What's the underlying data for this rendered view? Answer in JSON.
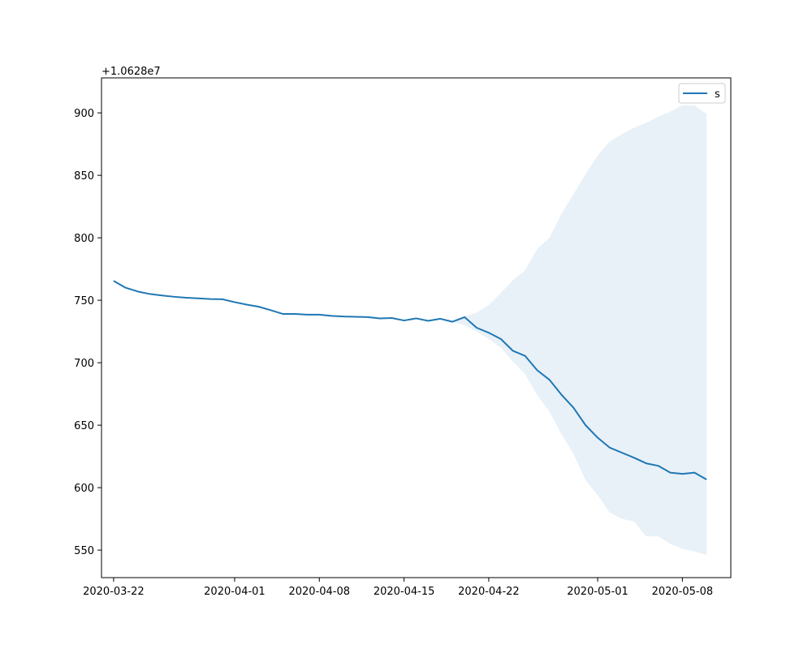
{
  "chart_data": {
    "type": "line",
    "title": "",
    "xlabel": "",
    "ylabel": "",
    "y_offset_label": "+1.0628e7",
    "y_offset": 10628000,
    "x_is_date": true,
    "xlim": [
      "2020-03-21",
      "2020-05-12"
    ],
    "ylim": [
      528,
      928
    ],
    "x_ticks": [
      "2020-03-22",
      "2020-04-01",
      "2020-04-08",
      "2020-04-15",
      "2020-04-22",
      "2020-05-01",
      "2020-05-08"
    ],
    "y_ticks": [
      550,
      600,
      650,
      700,
      750,
      800,
      850,
      900
    ],
    "grid": false,
    "legend": {
      "position": "top-right",
      "entries": [
        "s"
      ]
    },
    "colors": {
      "line": "#1f77b4",
      "band": "#1f77b4",
      "band_opacity": 0.1
    },
    "series": [
      {
        "name": "s",
        "x": [
          "2020-03-22",
          "2020-03-23",
          "2020-03-24",
          "2020-03-25",
          "2020-03-26",
          "2020-03-27",
          "2020-03-28",
          "2020-03-29",
          "2020-03-30",
          "2020-03-31",
          "2020-04-01",
          "2020-04-02",
          "2020-04-03",
          "2020-04-04",
          "2020-04-05",
          "2020-04-06",
          "2020-04-07",
          "2020-04-08",
          "2020-04-09",
          "2020-04-10",
          "2020-04-11",
          "2020-04-12",
          "2020-04-13",
          "2020-04-14",
          "2020-04-15",
          "2020-04-16",
          "2020-04-17",
          "2020-04-18",
          "2020-04-19",
          "2020-04-20",
          "2020-04-21",
          "2020-04-22",
          "2020-04-23",
          "2020-04-24",
          "2020-04-25",
          "2020-04-26",
          "2020-04-27",
          "2020-04-28",
          "2020-04-29",
          "2020-04-30",
          "2020-05-01",
          "2020-05-02",
          "2020-05-03",
          "2020-05-04",
          "2020-05-05",
          "2020-05-06",
          "2020-05-07",
          "2020-05-08",
          "2020-05-09",
          "2020-05-10"
        ],
        "values": [
          765.5,
          760,
          757,
          755,
          753.8,
          752.8,
          752,
          751.5,
          751,
          750.8,
          748.5,
          746.5,
          744.8,
          742,
          739,
          739,
          738.5,
          738.5,
          737.5,
          737,
          736.8,
          736.5,
          735.5,
          735.8,
          733.8,
          735.5,
          733.5,
          735.2,
          732.8,
          736.5,
          728,
          724,
          719,
          709.5,
          705.5,
          694,
          686.5,
          674.5,
          664,
          650,
          640,
          632,
          628,
          624,
          619.5,
          617.5,
          612,
          611,
          612,
          606.5
        ]
      }
    ],
    "confidence_band": {
      "x": [
        "2020-04-19",
        "2020-04-20",
        "2020-04-21",
        "2020-04-22",
        "2020-04-23",
        "2020-04-24",
        "2020-04-25",
        "2020-04-26",
        "2020-04-27",
        "2020-04-28",
        "2020-04-29",
        "2020-04-30",
        "2020-05-01",
        "2020-05-02",
        "2020-05-03",
        "2020-05-04",
        "2020-05-05",
        "2020-05-06",
        "2020-05-07",
        "2020-05-08",
        "2020-05-09",
        "2020-05-10"
      ],
      "upper": [
        732.8,
        737,
        740,
        746,
        756,
        766,
        774,
        791,
        800,
        819,
        835,
        851,
        866,
        877,
        883,
        888,
        892,
        897,
        901,
        906,
        906,
        899
      ],
      "lower": [
        732.8,
        730,
        725,
        719,
        712,
        701,
        691,
        674,
        661,
        643,
        627,
        606,
        594,
        580,
        575,
        573,
        561,
        561,
        555,
        551,
        549,
        546
      ]
    }
  }
}
